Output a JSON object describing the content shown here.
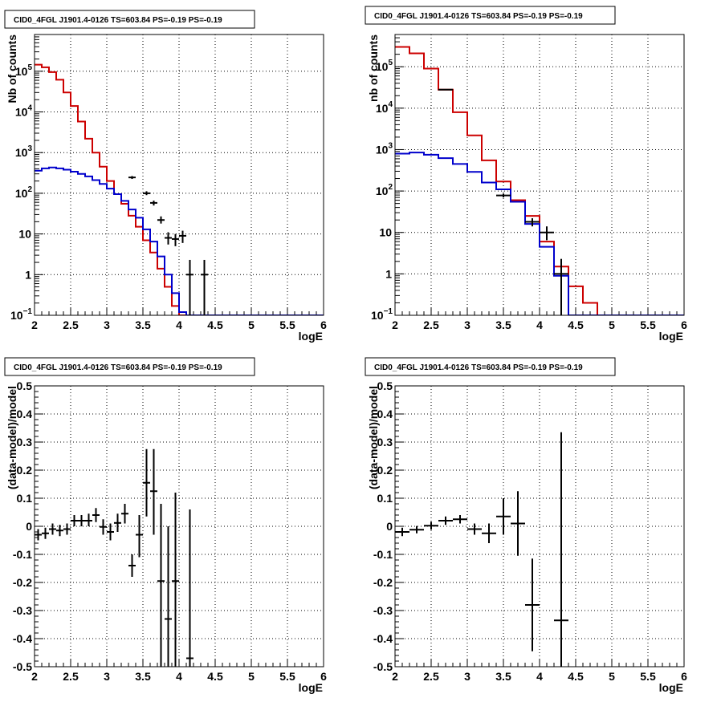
{
  "chart_data": [
    {
      "type": "line",
      "title": "CID0_4FGL J1901.4-0126 TS=603.84 PS=-0.19 PS=-0.19",
      "xlabel": "logE",
      "ylabel": "Nb of counts",
      "xlim": [
        2,
        6
      ],
      "ylim": [
        0.1,
        800000
      ],
      "yscale": "log",
      "grid": true,
      "x_ticks": [
        "2",
        "2.5",
        "3",
        "3.5",
        "4",
        "4.5",
        "5",
        "5.5",
        "6"
      ],
      "y_ticks": [
        {
          "v": 0.1,
          "mantissa": "10",
          "exp": "−1"
        },
        {
          "v": 1,
          "mantissa": "1",
          "exp": ""
        },
        {
          "v": 10,
          "mantissa": "10",
          "exp": ""
        },
        {
          "v": 100,
          "mantissa": "10",
          "exp": "2"
        },
        {
          "v": 1000,
          "mantissa": "10",
          "exp": "3"
        },
        {
          "v": 10000,
          "mantissa": "10",
          "exp": "4"
        },
        {
          "v": 100000,
          "mantissa": "10",
          "exp": "5"
        }
      ],
      "bin_width": 0.1,
      "bin_edges_start": 2,
      "series": [
        {
          "color": "#cc0000",
          "style": "step",
          "values": [
            145000,
            125000,
            95000,
            62000,
            30000,
            14000,
            5800,
            2200,
            1000,
            450,
            200,
            95,
            55,
            28,
            15,
            7,
            3.5,
            1.4,
            0.5,
            0.17,
            0.1,
            0.1,
            0.1,
            0.1,
            0.1,
            0.1,
            0.1,
            0.1,
            0.1,
            0.1,
            0.1,
            0.1,
            0.1,
            0.1,
            0.1,
            0.1,
            0.1,
            0.1,
            0.1,
            0.1
          ]
        },
        {
          "color": "#0000cc",
          "style": "step",
          "values": [
            360,
            410,
            430,
            410,
            380,
            340,
            300,
            260,
            210,
            170,
            130,
            95,
            65,
            40,
            25,
            13,
            6.5,
            2.8,
            1.0,
            0.35,
            0.12,
            0.1,
            0.1,
            0.1,
            0.1,
            0.1,
            0.1,
            0.1,
            0.1,
            0.1,
            0.1,
            0.1,
            0.1,
            0.1,
            0.1,
            0.1,
            0.1,
            0.1,
            0.1,
            0.1
          ]
        },
        {
          "color": "#000000",
          "style": "points",
          "points": [
            {
              "x": 3.35,
              "y": 245,
              "lo": 225,
              "hi": 265
            },
            {
              "x": 3.55,
              "y": 100,
              "lo": 90,
              "hi": 112
            },
            {
              "x": 3.65,
              "y": 58,
              "lo": 50,
              "hi": 66
            },
            {
              "x": 3.75,
              "y": 22,
              "lo": 18,
              "hi": 27
            },
            {
              "x": 3.85,
              "y": 8,
              "lo": 5.5,
              "hi": 11
            },
            {
              "x": 3.95,
              "y": 7.5,
              "lo": 5,
              "hi": 10
            },
            {
              "x": 4.05,
              "y": 9,
              "lo": 6,
              "hi": 12
            },
            {
              "x": 4.15,
              "y": 1,
              "lo": 0.1,
              "hi": 2.3
            },
            {
              "x": 4.35,
              "y": 1,
              "lo": 0.1,
              "hi": 2.3
            }
          ]
        }
      ]
    },
    {
      "type": "line",
      "title": "CID0_4FGL J1901.4-0126 TS=603.84 PS=-0.19 PS=-0.19",
      "xlabel": "logE",
      "ylabel": "nb of counts",
      "xlim": [
        2,
        6
      ],
      "ylim": [
        0.1,
        600000
      ],
      "yscale": "log",
      "grid": true,
      "x_ticks": [
        "2",
        "2.5",
        "3",
        "3.5",
        "4",
        "4.5",
        "5",
        "5.5",
        "6"
      ],
      "y_ticks": [
        {
          "v": 0.1,
          "mantissa": "10",
          "exp": "−1"
        },
        {
          "v": 1,
          "mantissa": "1",
          "exp": ""
        },
        {
          "v": 10,
          "mantissa": "10",
          "exp": ""
        },
        {
          "v": 100,
          "mantissa": "10",
          "exp": "2"
        },
        {
          "v": 1000,
          "mantissa": "10",
          "exp": "3"
        },
        {
          "v": 10000,
          "mantissa": "10",
          "exp": "4"
        },
        {
          "v": 100000,
          "mantissa": "10",
          "exp": "5"
        }
      ],
      "bin_width": 0.2,
      "bin_edges_start": 2,
      "series": [
        {
          "color": "#cc0000",
          "style": "step",
          "values": [
            300000,
            210000,
            90000,
            28000,
            8000,
            2200,
            550,
            170,
            60,
            25,
            6,
            1.5,
            0.5,
            0.2,
            0.1,
            0.1,
            0.1,
            0.1,
            0.1,
            0.1
          ]
        },
        {
          "color": "#0000cc",
          "style": "step",
          "values": [
            800,
            850,
            750,
            620,
            450,
            290,
            160,
            110,
            55,
            16,
            4.5,
            0.9,
            0.1,
            0.1,
            0.1,
            0.1,
            0.1,
            0.1,
            0.1,
            0.1
          ]
        },
        {
          "color": "#000000",
          "style": "points",
          "points": [
            {
              "x": 2.7,
              "y": 28000,
              "lo": 27500,
              "hi": 28500
            },
            {
              "x": 3.5,
              "y": 78,
              "lo": 70,
              "hi": 87
            },
            {
              "x": 3.9,
              "y": 18,
              "lo": 14,
              "hi": 22
            },
            {
              "x": 4.1,
              "y": 10,
              "lo": 6.5,
              "hi": 14
            },
            {
              "x": 4.3,
              "y": 1,
              "lo": 0.1,
              "hi": 2.3
            }
          ]
        }
      ]
    },
    {
      "type": "scatter",
      "title": "CID0_4FGL J1901.4-0126 TS=603.84 PS=-0.19 PS=-0.19",
      "xlabel": "logE",
      "ylabel": "(data-model)/model",
      "xlim": [
        2,
        6
      ],
      "ylim": [
        -0.5,
        0.5
      ],
      "yscale": "linear",
      "grid": true,
      "x_ticks": [
        "2",
        "2.5",
        "3",
        "3.5",
        "4",
        "4.5",
        "5",
        "5.5",
        "6"
      ],
      "y_ticks": [
        "-0.5",
        "-0.4",
        "-0.3",
        "-0.2",
        "-0.1",
        "0",
        "0.1",
        "0.2",
        "0.3",
        "0.4",
        "0.5"
      ],
      "bin_width": 0.1,
      "series": [
        {
          "color": "#000000",
          "style": "points",
          "points": [
            {
              "x": 2.05,
              "y": -0.03,
              "lo": -0.05,
              "hi": -0.01
            },
            {
              "x": 2.15,
              "y": -0.025,
              "lo": -0.045,
              "hi": -0.005
            },
            {
              "x": 2.25,
              "y": -0.01,
              "lo": -0.03,
              "hi": 0.01
            },
            {
              "x": 2.35,
              "y": -0.015,
              "lo": -0.035,
              "hi": 0.005
            },
            {
              "x": 2.45,
              "y": -0.01,
              "lo": -0.03,
              "hi": 0.01
            },
            {
              "x": 2.55,
              "y": 0.02,
              "lo": 0.0,
              "hi": 0.04
            },
            {
              "x": 2.65,
              "y": 0.02,
              "lo": 0.0,
              "hi": 0.04
            },
            {
              "x": 2.75,
              "y": 0.02,
              "lo": 0.0,
              "hi": 0.045
            },
            {
              "x": 2.85,
              "y": 0.04,
              "lo": 0.015,
              "hi": 0.065
            },
            {
              "x": 2.95,
              "y": -0.002,
              "lo": -0.03,
              "hi": 0.025
            },
            {
              "x": 3.05,
              "y": -0.02,
              "lo": -0.05,
              "hi": 0.01
            },
            {
              "x": 3.15,
              "y": 0.012,
              "lo": -0.02,
              "hi": 0.045
            },
            {
              "x": 3.25,
              "y": 0.045,
              "lo": 0.01,
              "hi": 0.08
            },
            {
              "x": 3.35,
              "y": -0.14,
              "lo": -0.18,
              "hi": -0.1
            },
            {
              "x": 3.45,
              "y": -0.03,
              "lo": -0.11,
              "hi": 0.04
            },
            {
              "x": 3.55,
              "y": 0.155,
              "lo": 0.035,
              "hi": 0.275
            },
            {
              "x": 3.65,
              "y": 0.125,
              "lo": -0.03,
              "hi": 0.275
            },
            {
              "x": 3.75,
              "y": -0.195,
              "lo": -0.5,
              "hi": 0.08
            },
            {
              "x": 3.85,
              "y": -0.33,
              "lo": -0.5,
              "hi": 0.0
            },
            {
              "x": 3.95,
              "y": -0.195,
              "lo": -0.5,
              "hi": 0.12
            },
            {
              "x": 4.15,
              "y": -0.47,
              "lo": -0.5,
              "hi": 0.06
            }
          ]
        }
      ]
    },
    {
      "type": "scatter",
      "title": "CID0_4FGL J1901.4-0126 TS=603.84 PS=-0.19 PS=-0.19",
      "xlabel": "logE",
      "ylabel": "(data-model)/model",
      "xlim": [
        2,
        6
      ],
      "ylim": [
        -0.5,
        0.5
      ],
      "yscale": "linear",
      "grid": true,
      "x_ticks": [
        "2",
        "2.5",
        "3",
        "3.5",
        "4",
        "4.5",
        "5",
        "5.5",
        "6"
      ],
      "y_ticks": [
        "-0.5",
        "-0.4",
        "-0.3",
        "-0.2",
        "-0.1",
        "0",
        "0.1",
        "0.2",
        "0.3",
        "0.4",
        "0.5"
      ],
      "bin_width": 0.2,
      "series": [
        {
          "color": "#000000",
          "style": "points",
          "points": [
            {
              "x": 2.1,
              "y": -0.02,
              "lo": -0.035,
              "hi": -0.005
            },
            {
              "x": 2.3,
              "y": -0.012,
              "lo": -0.025,
              "hi": 0.001
            },
            {
              "x": 2.5,
              "y": 0.002,
              "lo": -0.012,
              "hi": 0.016
            },
            {
              "x": 2.7,
              "y": 0.02,
              "lo": 0.005,
              "hi": 0.035
            },
            {
              "x": 2.9,
              "y": 0.025,
              "lo": 0.01,
              "hi": 0.04
            },
            {
              "x": 3.1,
              "y": -0.01,
              "lo": -0.03,
              "hi": 0.01
            },
            {
              "x": 3.3,
              "y": -0.025,
              "lo": -0.06,
              "hi": 0.01
            },
            {
              "x": 3.5,
              "y": 0.035,
              "lo": -0.03,
              "hi": 0.1
            },
            {
              "x": 3.7,
              "y": 0.01,
              "lo": -0.105,
              "hi": 0.125
            },
            {
              "x": 3.9,
              "y": -0.28,
              "lo": -0.445,
              "hi": -0.115
            },
            {
              "x": 4.3,
              "y": -0.335,
              "lo": -0.5,
              "hi": 0.335
            }
          ]
        }
      ]
    }
  ]
}
